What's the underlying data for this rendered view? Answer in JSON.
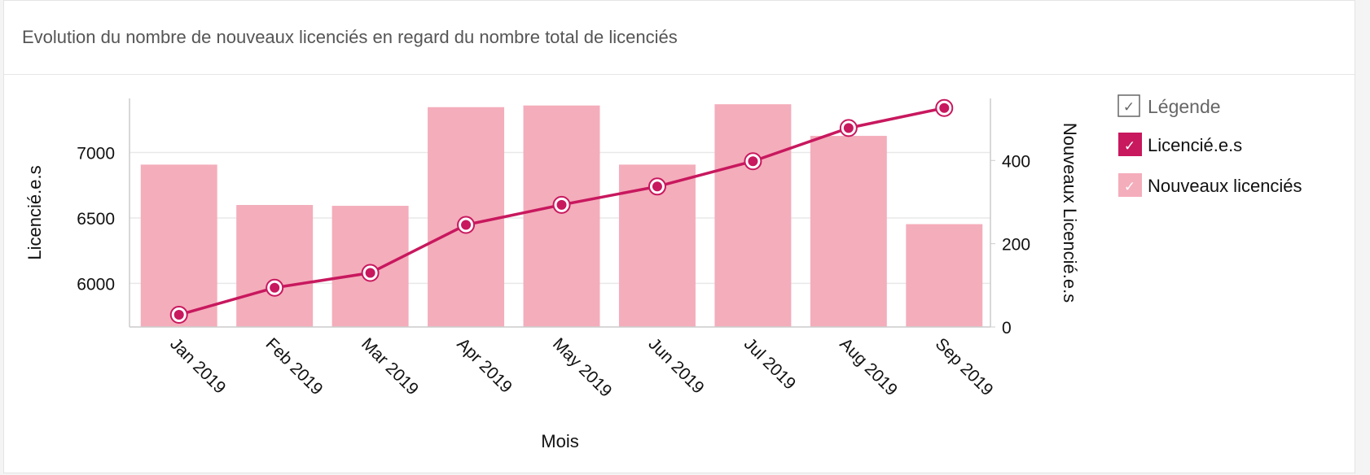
{
  "title": "Evolution du nombre de nouveaux licenciés en regard du nombre total de licenciés",
  "chart_data": {
    "type": "bar+line",
    "categories": [
      "Jan 2019",
      "Feb 2019",
      "Mar 2019",
      "Apr 2019",
      "May 2019",
      "Jun 2019",
      "Jul 2019",
      "Aug 2019",
      "Sep 2019"
    ],
    "series": [
      {
        "name": "Licencié.e.s",
        "type": "line",
        "axis": "left",
        "color": "#c8185e",
        "values": [
          5760,
          5967,
          6080,
          6447,
          6600,
          6740,
          6933,
          7187,
          7340
        ]
      },
      {
        "name": "Nouveaux licenciés",
        "type": "bar",
        "axis": "right",
        "color": "#f4adbb",
        "values": [
          390,
          293,
          291,
          528,
          532,
          390,
          535,
          459,
          247
        ]
      }
    ],
    "xlabel": "Mois",
    "ylabel_left": "Licencié.e.s",
    "ylabel_right": "Nouveaux Licencié.e.s",
    "ylim_left": [
      5667,
      7413
    ],
    "ylim_right": [
      0,
      549
    ],
    "yticks_left": [
      6000,
      6500,
      7000
    ],
    "yticks_right": [
      0,
      200,
      400
    ],
    "grid": true,
    "legend": {
      "title": "Légende",
      "placement": "right"
    }
  }
}
